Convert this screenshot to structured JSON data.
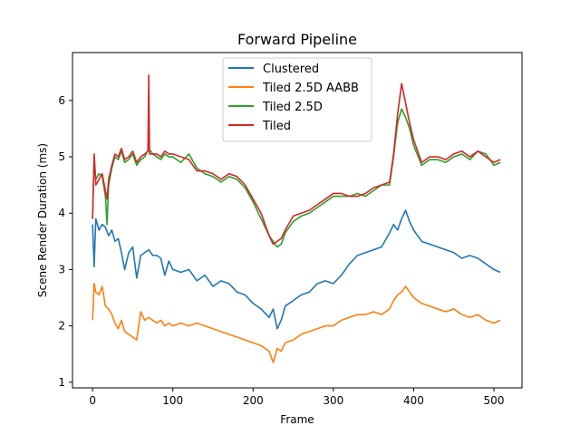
{
  "chart_data": {
    "type": "line",
    "title": "Forward Pipeline",
    "xlabel": "Frame",
    "ylabel": "Scene Render Duration (ms)",
    "xlim": [
      -25,
      535
    ],
    "ylim": [
      0.9,
      6.85
    ],
    "xticks": [
      0,
      100,
      200,
      300,
      400,
      500
    ],
    "yticks": [
      1,
      2,
      3,
      4,
      5,
      6
    ],
    "grid": false,
    "legend_position": "top-center",
    "series": [
      {
        "name": "Clustered",
        "color": "#1f77b4",
        "x": [
          0,
          2,
          4,
          8,
          12,
          16,
          20,
          24,
          28,
          32,
          36,
          40,
          45,
          50,
          55,
          60,
          65,
          70,
          75,
          80,
          85,
          90,
          95,
          100,
          110,
          120,
          130,
          140,
          150,
          160,
          170,
          180,
          190,
          200,
          210,
          220,
          225,
          230,
          235,
          240,
          250,
          260,
          270,
          280,
          290,
          300,
          310,
          320,
          330,
          340,
          350,
          360,
          370,
          375,
          380,
          385,
          390,
          395,
          400,
          410,
          420,
          430,
          440,
          450,
          460,
          470,
          480,
          490,
          500,
          508
        ],
        "values": [
          3.8,
          3.05,
          3.9,
          3.7,
          3.8,
          3.75,
          3.6,
          3.7,
          3.5,
          3.55,
          3.3,
          3.0,
          3.3,
          3.4,
          2.85,
          3.25,
          3.3,
          3.35,
          3.25,
          3.25,
          3.2,
          2.9,
          3.15,
          3.0,
          2.95,
          3.0,
          2.8,
          2.9,
          2.7,
          2.8,
          2.75,
          2.6,
          2.55,
          2.4,
          2.3,
          2.15,
          2.3,
          1.95,
          2.1,
          2.35,
          2.45,
          2.55,
          2.6,
          2.75,
          2.8,
          2.75,
          2.9,
          3.1,
          3.25,
          3.3,
          3.35,
          3.4,
          3.65,
          3.8,
          3.7,
          3.9,
          4.05,
          3.85,
          3.7,
          3.5,
          3.45,
          3.4,
          3.35,
          3.3,
          3.2,
          3.25,
          3.2,
          3.1,
          3.0,
          2.95
        ]
      },
      {
        "name": "Tiled 2.5D AABB",
        "color": "#ff7f0e",
        "x": [
          0,
          2,
          4,
          8,
          12,
          16,
          20,
          24,
          28,
          32,
          36,
          40,
          45,
          50,
          55,
          60,
          65,
          70,
          75,
          80,
          85,
          90,
          95,
          100,
          110,
          120,
          130,
          140,
          150,
          160,
          170,
          180,
          190,
          200,
          210,
          220,
          225,
          230,
          235,
          240,
          250,
          260,
          270,
          280,
          290,
          300,
          310,
          320,
          330,
          340,
          350,
          360,
          370,
          375,
          380,
          385,
          390,
          395,
          400,
          410,
          420,
          430,
          440,
          450,
          460,
          470,
          480,
          490,
          500,
          508
        ],
        "values": [
          2.1,
          2.75,
          2.6,
          2.55,
          2.7,
          2.35,
          2.3,
          2.2,
          2.05,
          1.95,
          2.1,
          1.9,
          1.85,
          1.8,
          1.75,
          2.25,
          2.1,
          2.15,
          2.1,
          2.05,
          2.1,
          2.0,
          2.05,
          2.0,
          2.05,
          2.0,
          2.05,
          2.0,
          1.95,
          1.9,
          1.85,
          1.8,
          1.75,
          1.7,
          1.65,
          1.55,
          1.35,
          1.6,
          1.55,
          1.7,
          1.75,
          1.85,
          1.9,
          1.95,
          2.0,
          2.0,
          2.1,
          2.15,
          2.2,
          2.2,
          2.25,
          2.2,
          2.3,
          2.45,
          2.55,
          2.6,
          2.7,
          2.6,
          2.5,
          2.4,
          2.35,
          2.3,
          2.25,
          2.3,
          2.2,
          2.15,
          2.2,
          2.1,
          2.05,
          2.1
        ]
      },
      {
        "name": "Tiled 2.5D",
        "color": "#2ca02c",
        "x": [
          0,
          2,
          4,
          8,
          12,
          16,
          18,
          20,
          24,
          28,
          32,
          36,
          40,
          45,
          50,
          55,
          60,
          65,
          70,
          75,
          80,
          85,
          90,
          95,
          100,
          110,
          120,
          130,
          140,
          150,
          160,
          170,
          180,
          190,
          200,
          210,
          220,
          225,
          230,
          235,
          240,
          250,
          260,
          270,
          280,
          290,
          300,
          310,
          320,
          330,
          340,
          350,
          360,
          370,
          375,
          380,
          385,
          390,
          395,
          400,
          410,
          420,
          430,
          440,
          450,
          460,
          470,
          480,
          490,
          500,
          508
        ],
        "values": [
          3.9,
          5.0,
          4.6,
          4.7,
          4.65,
          4.3,
          3.8,
          4.5,
          4.8,
          5.0,
          4.95,
          5.1,
          4.9,
          4.95,
          5.05,
          4.85,
          4.95,
          5.0,
          5.15,
          5.05,
          5.0,
          4.95,
          5.05,
          5.0,
          5.0,
          4.9,
          5.05,
          4.8,
          4.7,
          4.65,
          4.55,
          4.65,
          4.6,
          4.45,
          4.2,
          3.9,
          3.6,
          3.5,
          3.4,
          3.45,
          3.65,
          3.85,
          3.95,
          4.0,
          4.1,
          4.2,
          4.3,
          4.3,
          4.3,
          4.35,
          4.3,
          4.4,
          4.5,
          4.5,
          5.0,
          5.6,
          5.85,
          5.7,
          5.5,
          5.2,
          4.85,
          4.95,
          4.95,
          4.9,
          5.0,
          5.05,
          4.95,
          5.1,
          5.05,
          4.85,
          4.9
        ]
      },
      {
        "name": "Tiled",
        "color": "#d62728",
        "x": [
          0,
          2,
          4,
          8,
          12,
          16,
          18,
          20,
          24,
          28,
          32,
          36,
          40,
          45,
          50,
          55,
          60,
          65,
          69,
          70,
          71,
          75,
          80,
          85,
          90,
          95,
          100,
          110,
          120,
          130,
          140,
          150,
          160,
          170,
          180,
          190,
          200,
          210,
          220,
          225,
          230,
          235,
          240,
          250,
          260,
          270,
          280,
          290,
          300,
          310,
          320,
          330,
          340,
          350,
          360,
          370,
          375,
          380,
          385,
          390,
          395,
          400,
          410,
          420,
          430,
          440,
          450,
          460,
          470,
          480,
          490,
          500,
          508
        ],
        "values": [
          3.9,
          5.05,
          4.5,
          4.6,
          4.7,
          4.4,
          4.25,
          4.6,
          4.85,
          5.05,
          5.0,
          5.15,
          4.95,
          5.0,
          5.1,
          4.9,
          5.0,
          5.05,
          5.1,
          6.45,
          5.05,
          5.05,
          5.05,
          5.0,
          5.1,
          5.05,
          5.05,
          5.0,
          4.95,
          4.75,
          4.75,
          4.7,
          4.6,
          4.7,
          4.65,
          4.5,
          4.25,
          4.0,
          3.6,
          3.45,
          3.5,
          3.55,
          3.7,
          3.95,
          4.0,
          4.05,
          4.15,
          4.25,
          4.35,
          4.35,
          4.3,
          4.3,
          4.35,
          4.45,
          4.5,
          4.55,
          5.05,
          5.75,
          6.3,
          5.95,
          5.6,
          5.3,
          4.9,
          5.0,
          5.0,
          4.95,
          5.05,
          5.1,
          5.0,
          5.1,
          5.0,
          4.9,
          4.95
        ]
      }
    ]
  }
}
